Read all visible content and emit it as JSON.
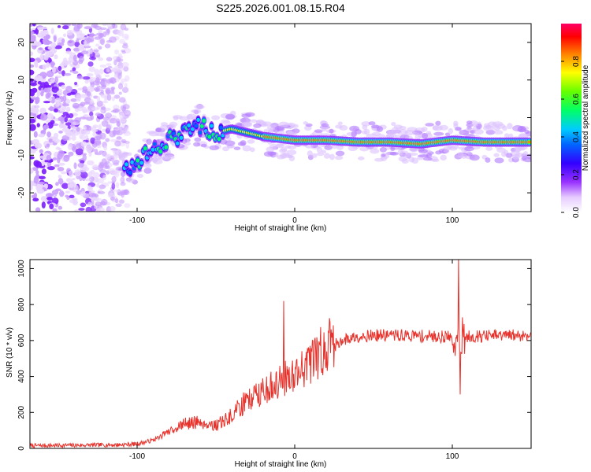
{
  "figure_title": "S225.2026.001.08.15.R04",
  "chart_data": [
    {
      "type": "heatmap",
      "title": "S225.2026.001.08.15.R04",
      "xlabel": "Height of straight line (km)",
      "ylabel": "Frequency (Hz)",
      "xlim": [
        -168,
        150
      ],
      "ylim": [
        -25,
        25
      ],
      "xticks": [
        -100,
        0,
        100
      ],
      "yticks": [
        -20,
        -10,
        0,
        10,
        20
      ],
      "colorbar": {
        "label": "Normalized spectral amplitude",
        "range": [
          0.0,
          1.0
        ],
        "ticks": [
          0.0,
          0.2,
          0.4,
          0.6,
          0.8
        ],
        "tick_labels": [
          "0.0",
          "0.2",
          "0.4",
          "0.6",
          "0.8"
        ],
        "colormap": [
          "#ffffff",
          "#d9b3ff",
          "#6600ff",
          "#0000ff",
          "#00ccff",
          "#00ff66",
          "#ffff00",
          "#ff8000",
          "#ff0000",
          "#ff00cc"
        ]
      },
      "ridge": {
        "description_points": [
          {
            "x": -110,
            "y": -15
          },
          {
            "x": -100,
            "y": -12
          },
          {
            "x": -90,
            "y": -8
          },
          {
            "x": -80,
            "y": -6
          },
          {
            "x": -70,
            "y": -4
          },
          {
            "x": -60,
            "y": -2
          },
          {
            "x": -50,
            "y": -4
          },
          {
            "x": -40,
            "y": -3
          },
          {
            "x": -30,
            "y": -4
          },
          {
            "x": -20,
            "y": -5
          },
          {
            "x": -10,
            "y": -5.5
          },
          {
            "x": 0,
            "y": -6
          },
          {
            "x": 20,
            "y": -6
          },
          {
            "x": 40,
            "y": -6.5
          },
          {
            "x": 60,
            "y": -6.5
          },
          {
            "x": 80,
            "y": -7
          },
          {
            "x": 100,
            "y": -6
          },
          {
            "x": 120,
            "y": -6.5
          },
          {
            "x": 150,
            "y": -6.5
          }
        ]
      }
    },
    {
      "type": "line",
      "xlabel": "Height of straight line (km)",
      "ylabel": "SNR (10 * v/v)",
      "xlim": [
        -168,
        150
      ],
      "ylim": [
        0,
        1050
      ],
      "xticks": [
        -100,
        0,
        100
      ],
      "yticks": [
        0,
        200,
        400,
        600,
        800,
        1000
      ],
      "color": "#e8312a",
      "envelope": [
        {
          "x": -168,
          "y": 15
        },
        {
          "x": -110,
          "y": 20
        },
        {
          "x": -100,
          "y": 25
        },
        {
          "x": -90,
          "y": 45
        },
        {
          "x": -80,
          "y": 90
        },
        {
          "x": -70,
          "y": 130
        },
        {
          "x": -60,
          "y": 140
        },
        {
          "x": -50,
          "y": 120
        },
        {
          "x": -40,
          "y": 170
        },
        {
          "x": -30,
          "y": 260
        },
        {
          "x": -20,
          "y": 300
        },
        {
          "x": -10,
          "y": 350
        },
        {
          "x": 0,
          "y": 400
        },
        {
          "x": 10,
          "y": 450
        },
        {
          "x": 20,
          "y": 540
        },
        {
          "x": 30,
          "y": 600
        },
        {
          "x": 40,
          "y": 625
        },
        {
          "x": 60,
          "y": 630
        },
        {
          "x": 80,
          "y": 625
        },
        {
          "x": 100,
          "y": 620
        },
        {
          "x": 120,
          "y": 625
        },
        {
          "x": 150,
          "y": 630
        }
      ],
      "spikes": [
        {
          "x": -7,
          "y": 820
        },
        {
          "x": 104,
          "y": 1060
        },
        {
          "x": 105,
          "y": 300
        }
      ]
    }
  ]
}
